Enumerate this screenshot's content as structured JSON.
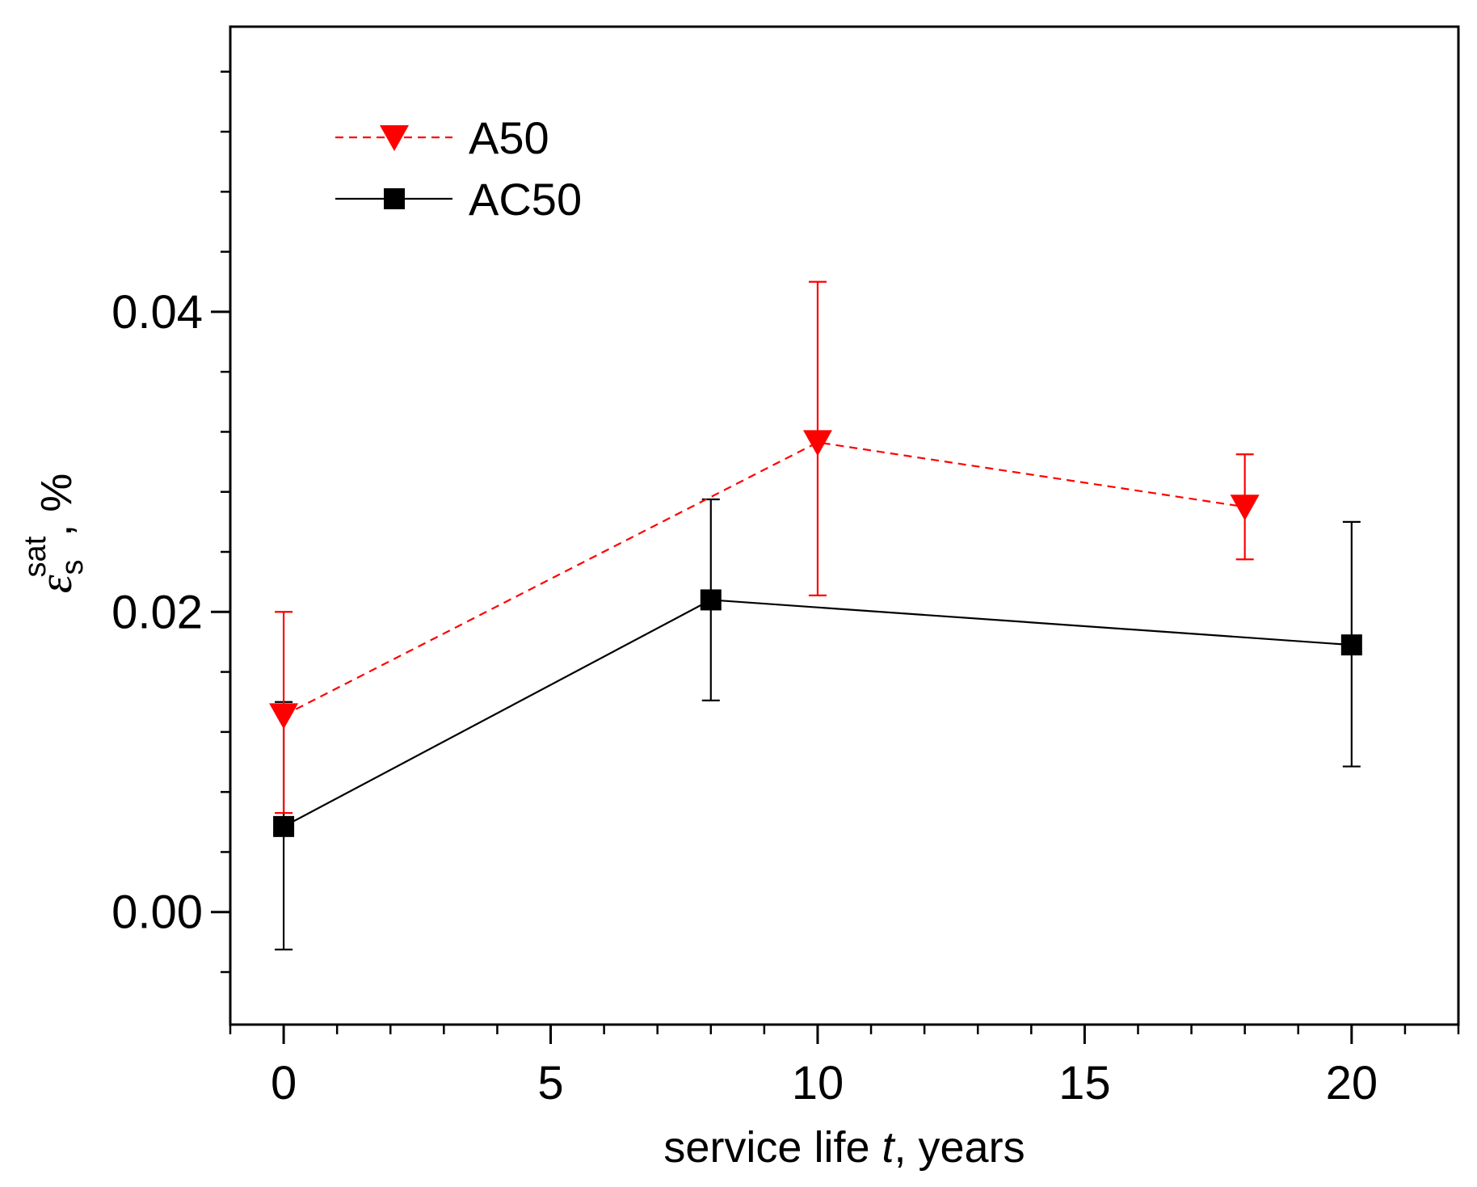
{
  "chart_data": {
    "type": "line",
    "title": "",
    "xlabel_parts": {
      "pre": "service life ",
      "var": "t",
      "post": ", years"
    },
    "ylabel_parts": {
      "symbol": "ε",
      "sub": "s",
      "sup": "sat",
      "post": ", %"
    },
    "xlim": [
      -1,
      22
    ],
    "ylim": [
      -0.0075,
      0.059
    ],
    "x_ticks": [
      0,
      5,
      10,
      15,
      20
    ],
    "x_tick_labels": [
      "0",
      "5",
      "10",
      "15",
      "20"
    ],
    "x_minor_step": 1,
    "y_ticks": [
      0.0,
      0.02,
      0.04
    ],
    "y_tick_labels": [
      "0.00",
      "0.02",
      "0.04"
    ],
    "y_minor_step": 0.004,
    "grid": false,
    "legend_position": "top-left",
    "series": [
      {
        "name": "A50",
        "x": [
          0,
          10,
          18
        ],
        "y": [
          0.0131,
          0.0313,
          0.027
        ],
        "err_low": [
          0.0066,
          0.0211,
          0.0235
        ],
        "err_high": [
          0.02,
          0.042,
          0.0305
        ],
        "color": "#ff0000",
        "line_style": "dashed",
        "marker": "triangle-down"
      },
      {
        "name": "AC50",
        "x": [
          0,
          8,
          20
        ],
        "y": [
          0.0057,
          0.0208,
          0.0178
        ],
        "err_low": [
          -0.0025,
          0.0141,
          0.0097
        ],
        "err_high": [
          0.014,
          0.0275,
          0.026
        ],
        "color": "#000000",
        "line_style": "solid",
        "marker": "square"
      }
    ]
  }
}
